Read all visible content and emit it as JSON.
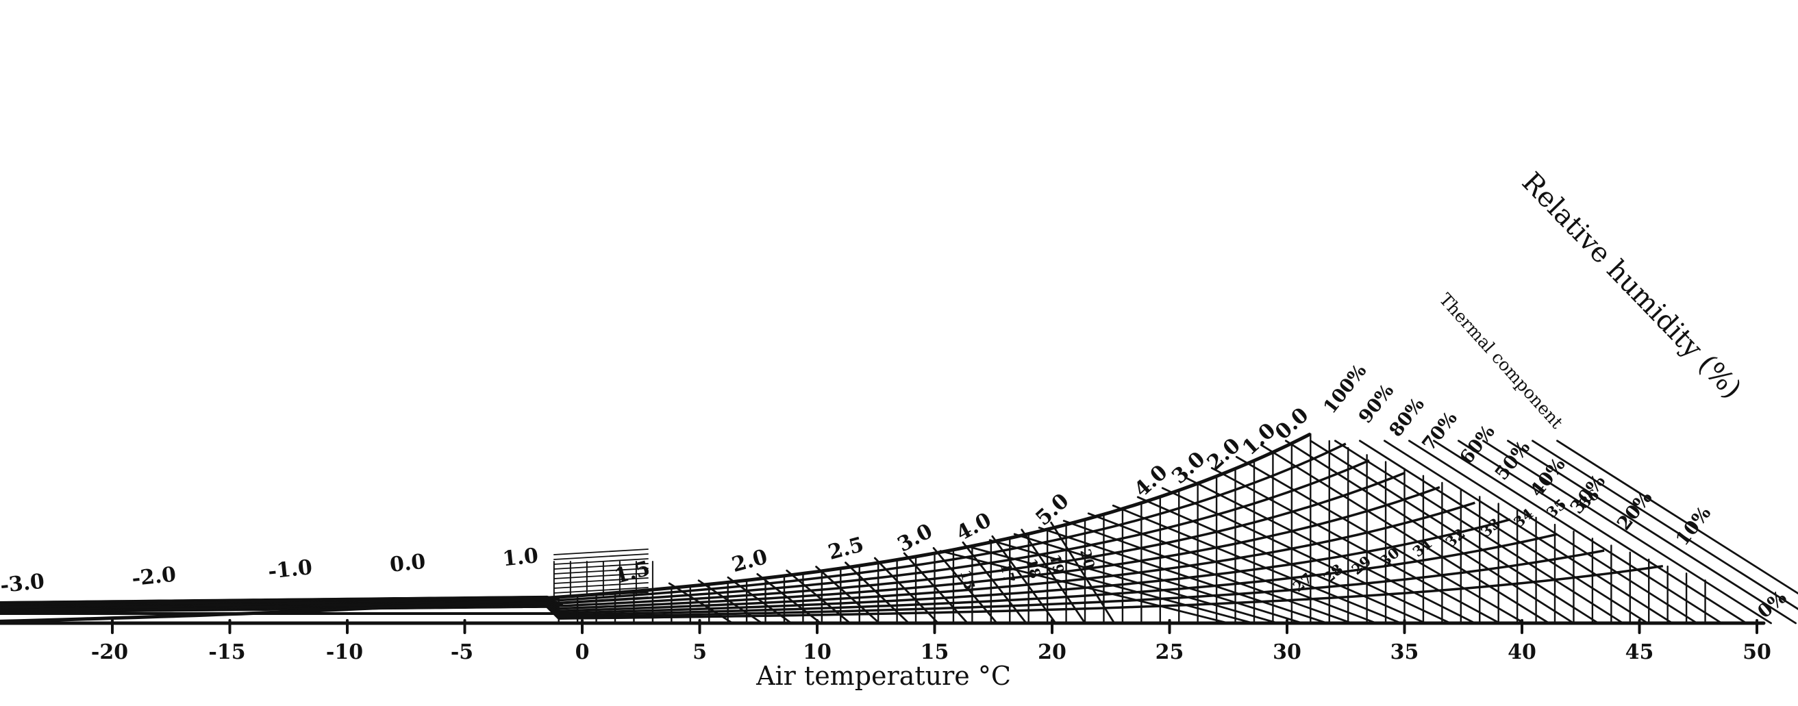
{
  "chart_data": {
    "type": "line",
    "title": "",
    "xlabel": "Air temperature °C",
    "diagonal_label": "Relative humidity (%)",
    "secondary_label": "Thermal component",
    "xlim": [
      -25,
      50
    ],
    "x_ticks": [
      {
        "value": -20,
        "label": "-20"
      },
      {
        "value": -15,
        "label": "-15"
      },
      {
        "value": -10,
        "label": "-10"
      },
      {
        "value": -5,
        "label": "-5"
      },
      {
        "value": 0,
        "label": "0"
      },
      {
        "value": 5,
        "label": "5"
      },
      {
        "value": 10,
        "label": "10"
      },
      {
        "value": 15,
        "label": "15"
      },
      {
        "value": 20,
        "label": "20"
      },
      {
        "value": 25,
        "label": "25"
      },
      {
        "value": 30,
        "label": "30"
      },
      {
        "value": 35,
        "label": "35"
      },
      {
        "value": 40,
        "label": "40"
      },
      {
        "value": 45,
        "label": "45"
      },
      {
        "value": 50,
        "label": "50"
      }
    ],
    "relative_humidity_series": [
      {
        "name": "0%",
        "label": "0%",
        "value": 0
      },
      {
        "name": "10%",
        "label": "10%",
        "value": 10
      },
      {
        "name": "20%",
        "label": "20%",
        "value": 20
      },
      {
        "name": "30%",
        "label": "30%",
        "value": 30
      },
      {
        "name": "40%",
        "label": "40%",
        "value": 40
      },
      {
        "name": "50%",
        "label": "50%",
        "value": 50
      },
      {
        "name": "60%",
        "label": "60%",
        "value": 60
      },
      {
        "name": "70%",
        "label": "70%",
        "value": 70
      },
      {
        "name": "80%",
        "label": "80%",
        "value": 80
      },
      {
        "name": "90%",
        "label": "90%",
        "value": 90
      },
      {
        "name": "100%",
        "label": "100%",
        "value": 100
      }
    ],
    "curve_labels": [
      {
        "label": "-3.0",
        "x": -23.8
      },
      {
        "label": "-2.0",
        "x": -18.2
      },
      {
        "label": "-1.0",
        "x": -12.4
      },
      {
        "label": "0.0",
        "x": -7.4
      },
      {
        "label": "1.0",
        "x": -2.6
      },
      {
        "label": "1.5",
        "x": 2.2
      },
      {
        "label": "2.0",
        "x": 7.2
      },
      {
        "label": "2.5",
        "x": 11.3
      },
      {
        "label": "3.0",
        "x": 14.3
      },
      {
        "label": "4.0",
        "x": 16.8
      },
      {
        "label": "5.0",
        "x": 20.2
      },
      {
        "label": "4.0",
        "x": 24.4
      },
      {
        "label": "3.0",
        "x": 26.0
      },
      {
        "label": "2.0",
        "x": 27.5
      },
      {
        "label": "1.0",
        "x": 29.0
      },
      {
        "label": "0.0",
        "x": 30.4
      }
    ],
    "thermal_component_labels": [
      {
        "label": "15",
        "x": 16.2
      },
      {
        "label": "17",
        "x": 17.9
      },
      {
        "label": "18",
        "x": 19.0
      },
      {
        "label": "19",
        "x": 20.0
      },
      {
        "label": "20",
        "x": 21.3
      },
      {
        "label": "27",
        "x": 30.8
      },
      {
        "label": "28",
        "x": 32.1
      },
      {
        "label": "29",
        "x": 33.3
      },
      {
        "label": "30",
        "x": 34.5
      },
      {
        "label": "31",
        "x": 35.9
      },
      {
        "label": "32",
        "x": 37.3
      },
      {
        "label": "33",
        "x": 38.8
      },
      {
        "label": "34",
        "x": 40.2
      },
      {
        "label": "35",
        "x": 41.6
      },
      {
        "label": "36",
        "x": 43.0
      }
    ]
  }
}
